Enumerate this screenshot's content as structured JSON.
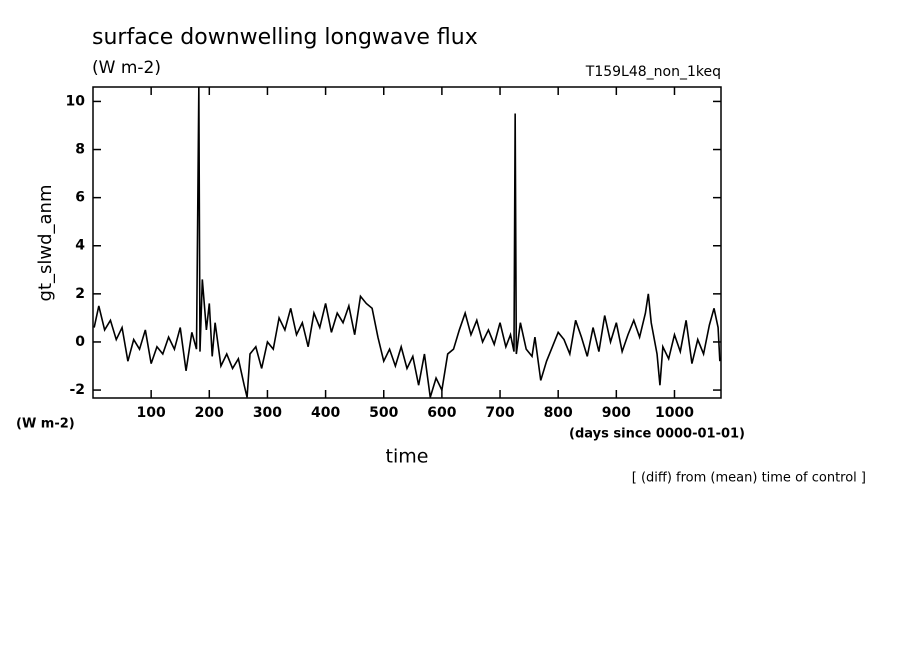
{
  "chart_data": {
    "type": "line",
    "title": "surface downwelling longwave flux",
    "subtitle": "(W m-2)",
    "run_label": "T159L48_non_1keq",
    "ylabel": "gt_slwd_anm",
    "yunit": "(W m-2)",
    "xunit": "(days since 0000-01-01)",
    "xlabel": "time",
    "note": "[ (diff) from (mean) time of control ]",
    "xlim": [
      0,
      1080
    ],
    "ylim": [
      -2.33,
      10.6
    ],
    "xticks": [
      100,
      200,
      300,
      400,
      500,
      600,
      700,
      800,
      900,
      1000
    ],
    "yticks": [
      -2,
      0,
      2,
      4,
      6,
      8,
      10
    ],
    "series": [
      {
        "color": "#000000",
        "x": [
          2,
          10,
          20,
          30,
          40,
          50,
          60,
          70,
          80,
          90,
          100,
          110,
          120,
          130,
          140,
          150,
          160,
          170,
          178,
          182,
          184,
          188,
          195,
          200,
          205,
          210,
          220,
          230,
          240,
          250,
          260,
          265,
          270,
          280,
          290,
          300,
          310,
          320,
          330,
          340,
          350,
          360,
          370,
          380,
          390,
          400,
          410,
          420,
          430,
          440,
          450,
          460,
          470,
          480,
          490,
          500,
          510,
          520,
          530,
          540,
          550,
          560,
          570,
          580,
          590,
          600,
          610,
          620,
          630,
          640,
          650,
          660,
          670,
          680,
          690,
          700,
          710,
          718,
          724,
          726,
          728,
          735,
          745,
          755,
          760,
          770,
          780,
          790,
          800,
          810,
          820,
          830,
          840,
          850,
          860,
          870,
          880,
          890,
          900,
          910,
          920,
          930,
          940,
          950,
          955,
          960,
          970,
          975,
          980,
          990,
          1000,
          1010,
          1020,
          1030,
          1040,
          1050,
          1060,
          1068,
          1075,
          1078
        ],
        "values": [
          0.6,
          1.5,
          0.5,
          0.9,
          0.1,
          0.6,
          -0.8,
          0.1,
          -0.3,
          0.5,
          -0.9,
          -0.2,
          -0.5,
          0.2,
          -0.3,
          0.6,
          -1.2,
          0.4,
          -0.3,
          10.6,
          -0.4,
          2.6,
          0.5,
          1.6,
          -0.6,
          0.8,
          -1.0,
          -0.5,
          -1.1,
          -0.7,
          -1.8,
          -2.3,
          -0.5,
          -0.2,
          -1.1,
          0.0,
          -0.3,
          1.0,
          0.5,
          1.4,
          0.3,
          0.8,
          -0.2,
          1.2,
          0.6,
          1.6,
          0.4,
          1.2,
          0.8,
          1.5,
          0.3,
          1.9,
          1.6,
          1.4,
          0.2,
          -0.8,
          -0.3,
          -1.0,
          -0.2,
          -1.1,
          -0.6,
          -1.8,
          -0.5,
          -2.3,
          -1.5,
          -2.0,
          -0.5,
          -0.3,
          0.5,
          1.2,
          0.3,
          0.9,
          0.0,
          0.5,
          -0.1,
          0.8,
          -0.2,
          0.3,
          -0.4,
          9.5,
          -0.5,
          0.8,
          -0.3,
          -0.6,
          0.2,
          -1.6,
          -0.8,
          -0.2,
          0.4,
          0.1,
          -0.5,
          0.9,
          0.2,
          -0.6,
          0.6,
          -0.4,
          1.1,
          0.0,
          0.8,
          -0.4,
          0.3,
          0.9,
          0.2,
          1.2,
          2.0,
          0.8,
          -0.5,
          -1.8,
          -0.2,
          -0.7,
          0.3,
          -0.4,
          0.9,
          -0.9,
          0.1,
          -0.5,
          0.7,
          1.4,
          0.6,
          -0.8
        ]
      }
    ]
  }
}
